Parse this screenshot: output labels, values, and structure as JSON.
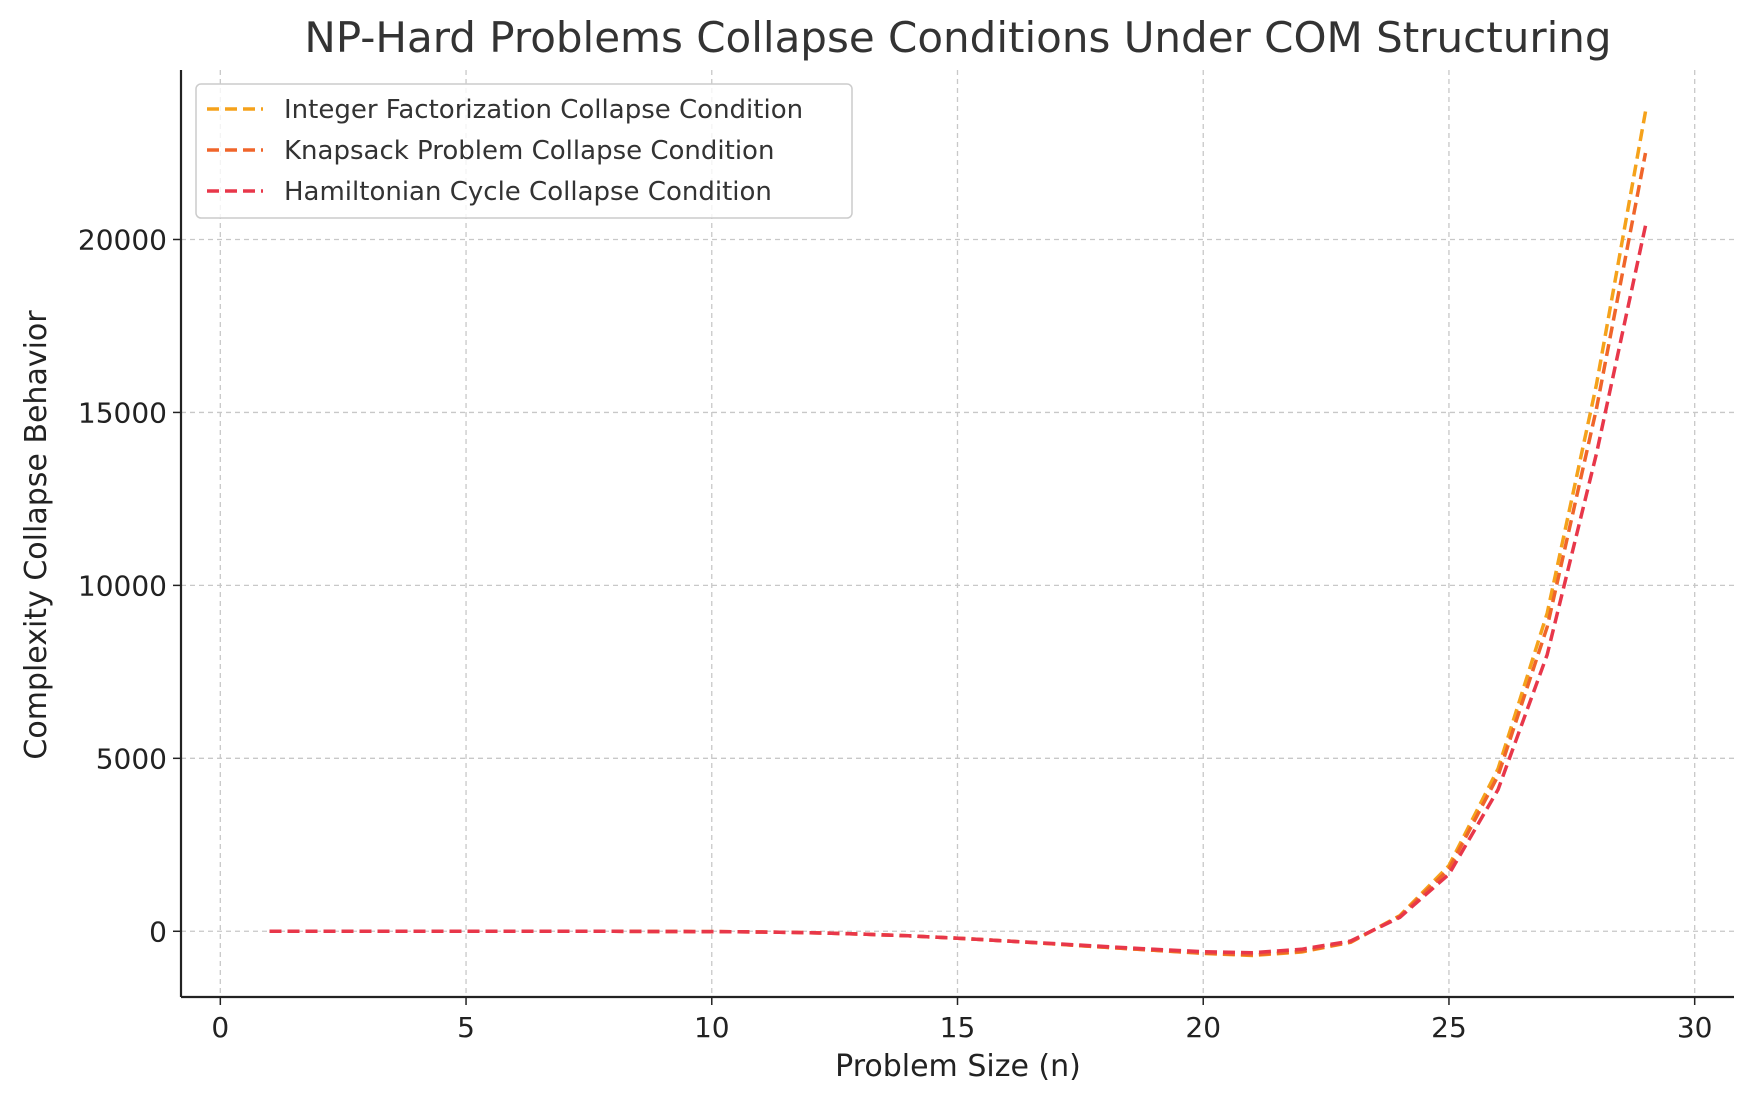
{
  "chart_data": {
    "type": "line",
    "title": "NP-Hard Problems Collapse Conditions Under COM Structuring",
    "xlabel": "Problem Size (n)",
    "ylabel": "Complexity Collapse Behavior",
    "xlim": [
      -0.8,
      30.8
    ],
    "ylim": [
      -1900,
      24900
    ],
    "x_ticks": [
      0,
      5,
      10,
      15,
      20,
      25,
      30
    ],
    "y_ticks": [
      0,
      5000,
      10000,
      15000,
      20000
    ],
    "grid": true,
    "grid_style": "dashed",
    "legend_position": "top-left",
    "x": [
      1,
      2,
      3,
      4,
      5,
      6,
      7,
      8,
      9,
      10,
      11,
      12,
      13,
      14,
      15,
      16,
      17,
      18,
      19,
      20,
      21,
      22,
      23,
      24,
      25,
      26,
      27,
      28,
      29
    ],
    "series": [
      {
        "name": "Integer Factorization Collapse Condition",
        "color": "#f5a21b",
        "values": [
          0,
          0,
          0,
          0,
          0,
          0,
          0,
          0,
          -5,
          -10,
          -20,
          -40,
          -80,
          -130,
          -200,
          -280,
          -370,
          -460,
          -550,
          -640,
          -700,
          -600,
          -320,
          450,
          1900,
          4700,
          9200,
          15800,
          23700
        ]
      },
      {
        "name": "Knapsack Problem Collapse Condition",
        "color": "#f0652a",
        "values": [
          0,
          0,
          0,
          0,
          0,
          0,
          0,
          0,
          -5,
          -10,
          -20,
          -40,
          -80,
          -130,
          -200,
          -280,
          -370,
          -460,
          -550,
          -630,
          -680,
          -580,
          -310,
          430,
          1800,
          4500,
          8800,
          15100,
          22500
        ]
      },
      {
        "name": "Hamiltonian Cycle Collapse Condition",
        "color": "#e8374a",
        "values": [
          0,
          0,
          0,
          0,
          0,
          0,
          0,
          0,
          -5,
          -10,
          -20,
          -40,
          -80,
          -130,
          -200,
          -280,
          -360,
          -440,
          -520,
          -590,
          -620,
          -520,
          -280,
          400,
          1650,
          4100,
          8000,
          13800,
          20400
        ]
      }
    ]
  }
}
